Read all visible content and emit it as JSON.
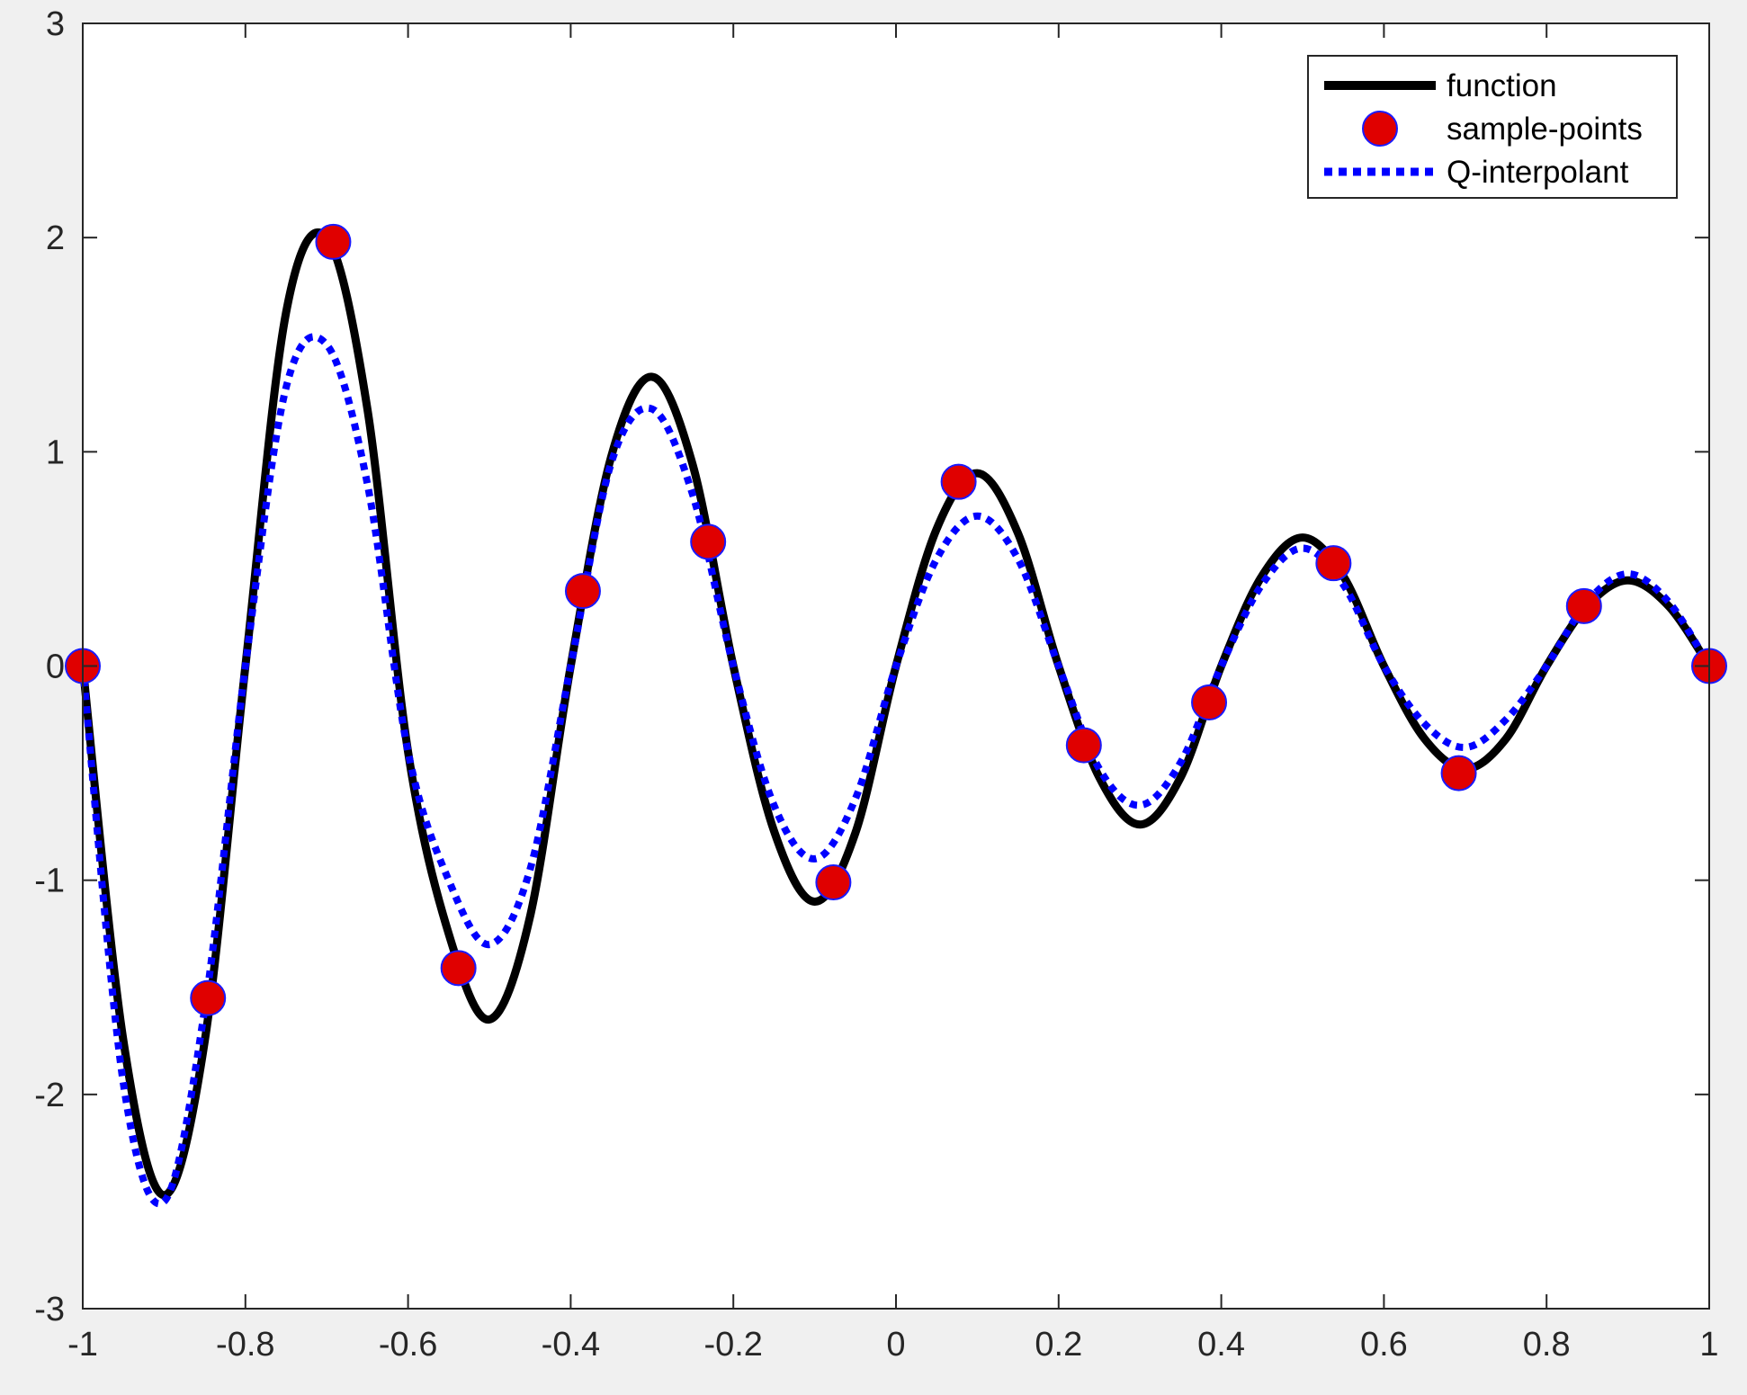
{
  "chart_data": {
    "type": "line",
    "title": "",
    "xlabel": "",
    "ylabel": "",
    "xlim": [
      -1,
      1
    ],
    "ylim": [
      -3,
      3
    ],
    "x_ticks": [
      -1,
      -0.8,
      -0.6,
      -0.4,
      -0.2,
      0,
      0.2,
      0.4,
      0.6,
      0.8,
      1
    ],
    "x_tick_labels": [
      "-1",
      "-0.8",
      "-0.6",
      "-0.4",
      "-0.2",
      "0",
      "0.2",
      "0.4",
      "0.6",
      "0.8",
      "1"
    ],
    "y_ticks": [
      -3,
      -2,
      -1,
      0,
      1,
      2,
      3
    ],
    "y_tick_labels": [
      "-3",
      "-2",
      "-1",
      "0",
      "1",
      "2",
      "3"
    ],
    "grid": false,
    "legend_position": "top-right",
    "series": [
      {
        "name": "function",
        "style": "solid",
        "color": "#000000",
        "x": [
          -1,
          -0.95,
          -0.9,
          -0.85,
          -0.8,
          -0.75,
          -0.7,
          -0.65,
          -0.6,
          -0.55,
          -0.5,
          -0.45,
          -0.4,
          -0.35,
          -0.3,
          -0.25,
          -0.2,
          -0.15,
          -0.1,
          -0.05,
          0,
          0.05,
          0.1,
          0.15,
          0.2,
          0.25,
          0.3,
          0.35,
          0.4,
          0.45,
          0.5,
          0.55,
          0.6,
          0.65,
          0.7,
          0.75,
          0.8,
          0.85,
          0.9,
          0.95,
          1
        ],
        "y": [
          0,
          -1.75,
          -2.47,
          -1.75,
          0,
          1.65,
          2.0,
          1.2,
          -0.4,
          -1.25,
          -1.65,
          -1.17,
          0,
          0.98,
          1.35,
          0.94,
          0,
          -0.77,
          -1.1,
          -0.78,
          0,
          0.64,
          0.9,
          0.62,
          0,
          -0.52,
          -0.74,
          -0.52,
          0,
          0.42,
          0.6,
          0.42,
          0,
          -0.34,
          -0.48,
          -0.34,
          0,
          0.28,
          0.4,
          0.28,
          0
        ]
      },
      {
        "name": "sample-points",
        "style": "markers",
        "color": "#e00000",
        "edge_color": "#1a1aff",
        "x": [
          -1,
          -0.846,
          -0.692,
          -0.538,
          -0.385,
          -0.231,
          -0.077,
          0.077,
          0.231,
          0.385,
          0.538,
          0.692,
          0.846,
          1
        ],
        "y": [
          0,
          -1.55,
          1.98,
          -1.41,
          0.35,
          0.58,
          -1.01,
          0.86,
          -0.37,
          -0.17,
          0.48,
          -0.5,
          0.28,
          0
        ]
      },
      {
        "name": "Q-interpolant",
        "style": "dotted",
        "color": "#0000ff",
        "x": [
          -1,
          -0.95,
          -0.9,
          -0.85,
          -0.8,
          -0.75,
          -0.7,
          -0.65,
          -0.6,
          -0.55,
          -0.5,
          -0.45,
          -0.4,
          -0.35,
          -0.3,
          -0.25,
          -0.2,
          -0.15,
          -0.1,
          -0.05,
          0,
          0.05,
          0.1,
          0.15,
          0.2,
          0.25,
          0.3,
          0.35,
          0.4,
          0.45,
          0.5,
          0.55,
          0.6,
          0.65,
          0.7,
          0.75,
          0.8,
          0.85,
          0.9,
          0.95,
          1
        ],
        "y": [
          0,
          -1.95,
          -2.5,
          -1.6,
          0,
          1.3,
          1.5,
          0.85,
          -0.4,
          -1.0,
          -1.3,
          -0.95,
          0,
          0.95,
          1.2,
          0.8,
          0,
          -0.65,
          -0.9,
          -0.62,
          0,
          0.5,
          0.7,
          0.5,
          0,
          -0.48,
          -0.65,
          -0.45,
          0,
          0.38,
          0.55,
          0.38,
          0,
          -0.27,
          -0.38,
          -0.25,
          0,
          0.3,
          0.43,
          0.3,
          0
        ]
      }
    ]
  }
}
